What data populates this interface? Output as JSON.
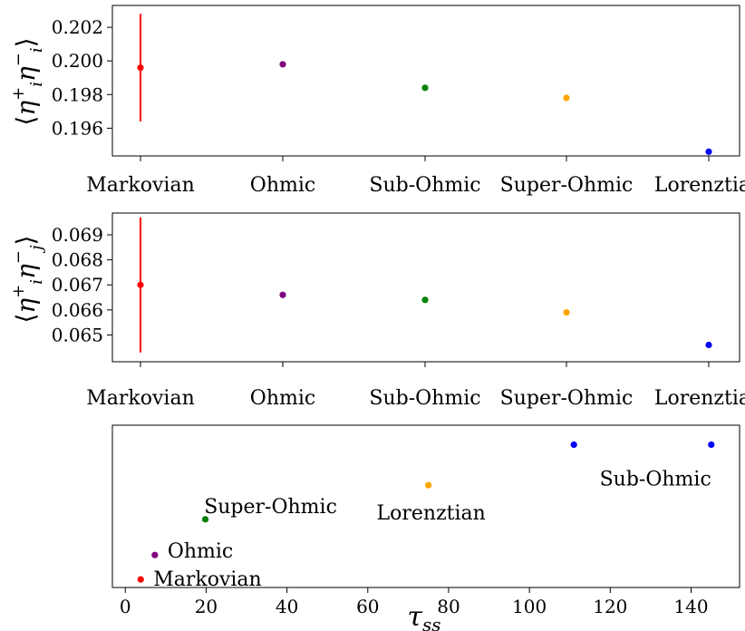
{
  "chart_data": [
    {
      "type": "scatter",
      "ylabel": "⟨η_i^+ η_i^−⟩",
      "categories": [
        "Markovian",
        "Ohmic",
        "Sub-Ohmic",
        "Super-Ohmic",
        "Lorenztian"
      ],
      "values": [
        0.1996,
        0.1998,
        0.1984,
        0.1978,
        0.1946
      ],
      "errors": [
        0.0032,
        0,
        0,
        0,
        0
      ],
      "colors": [
        "#ff0000",
        "#800080",
        "#008000",
        "#ffa500",
        "#0000ff"
      ],
      "ylim": [
        0.19435,
        0.2033
      ],
      "yticks": [
        0.196,
        0.198,
        0.2,
        0.202
      ],
      "ytick_labels": [
        "0.196",
        "0.198",
        "0.200",
        "0.202"
      ]
    },
    {
      "type": "scatter",
      "ylabel": "⟨η_i^+ η_j^−⟩",
      "categories": [
        "Markovian",
        "Ohmic",
        "Sub-Ohmic",
        "Super-Ohmic",
        "Lorenztian"
      ],
      "values": [
        0.067,
        0.0666,
        0.0664,
        0.0659,
        0.0646
      ],
      "errors": [
        0.0027,
        0,
        0,
        0,
        0
      ],
      "colors": [
        "#ff0000",
        "#800080",
        "#008000",
        "#ffa500",
        "#0000ff"
      ],
      "ylim": [
        0.06393,
        0.06987
      ],
      "yticks": [
        0.065,
        0.066,
        0.067,
        0.068,
        0.069
      ],
      "ytick_labels": [
        "0.065",
        "0.066",
        "0.067",
        "0.068",
        "0.069"
      ]
    },
    {
      "type": "scatter",
      "xlabel": "τ_ss",
      "x": [
        3.8,
        7.3,
        19.8,
        75,
        111,
        145
      ],
      "y": [
        0.05,
        0.2,
        0.42,
        0.63,
        0.88,
        0.88
      ],
      "colors": [
        "#ff0000",
        "#800080",
        "#008000",
        "#ffa500",
        "#0000ff",
        "#0000ff"
      ],
      "annotations": [
        "Markovian",
        "Ohmic",
        "Super-Ohmic",
        "Lorenztian",
        "Sub-Ohmic"
      ],
      "xlim": [
        -3.2,
        152
      ],
      "ylim": [
        0,
        1
      ],
      "xticks": [
        0,
        20,
        40,
        60,
        80,
        100,
        120,
        140
      ],
      "xtick_labels": [
        "0",
        "20",
        "40",
        "60",
        "80",
        "100",
        "120",
        "140"
      ]
    }
  ]
}
